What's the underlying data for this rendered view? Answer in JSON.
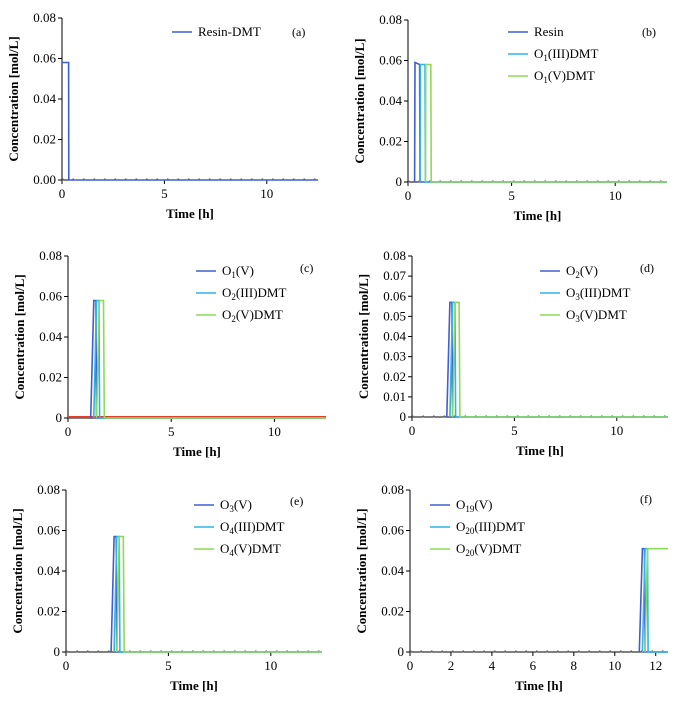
{
  "colors": {
    "blue": "#3f5fcf",
    "cyan": "#2eb4e8",
    "green": "#8ed85c",
    "red": "#e0402a",
    "axis": "#000000",
    "dotted": "#555555"
  },
  "chart_data": [
    {
      "type": "line",
      "panel": "(a)",
      "xlabel": "Time [h]",
      "ylabel": "Concentration [mol/L]",
      "xlim": [
        0,
        12.5
      ],
      "ylim": [
        0,
        0.08
      ],
      "xticks": [
        0,
        5,
        10
      ],
      "xtick_labels": [
        "0",
        "5",
        "10"
      ],
      "yticks": [
        0,
        0.02,
        0.04,
        0.06,
        0.08
      ],
      "ytick_labels": [
        "0.00",
        "0.02",
        "0.04",
        "0.06",
        "0.08"
      ],
      "series": [
        {
          "name": "Resin-DMT",
          "color": "blue",
          "x": [
            0,
            0.32,
            0.33,
            12.5
          ],
          "y": [
            0.058,
            0.058,
            0,
            0
          ]
        }
      ]
    },
    {
      "type": "line",
      "panel": "(b)",
      "xlabel": "Time [h]",
      "ylabel": "Concentration [mol/L]",
      "xlim": [
        0,
        12.5
      ],
      "ylim": [
        0,
        0.08
      ],
      "xticks": [
        0,
        5,
        10
      ],
      "xtick_labels": [
        "0",
        "5",
        "10"
      ],
      "yticks": [
        0,
        0.02,
        0.04,
        0.06,
        0.08
      ],
      "ytick_labels": [
        "0",
        "0.02",
        "0.04",
        "0.06",
        "0.08"
      ],
      "series": [
        {
          "name": "Resin",
          "sub": "",
          "suffix": "",
          "color": "blue",
          "x": [
            0.32,
            0.34,
            0.56,
            0.58,
            12.5
          ],
          "y": [
            0,
            0.059,
            0.058,
            0,
            0
          ]
        },
        {
          "name": "O",
          "sub": "1",
          "suffix": "(III)DMT",
          "color": "cyan",
          "x": [
            0.58,
            0.6,
            0.82,
            0.84,
            12.5
          ],
          "y": [
            0,
            0.058,
            0.058,
            0,
            0
          ]
        },
        {
          "name": "O",
          "sub": "1",
          "suffix": "(V)DMT",
          "color": "green",
          "x": [
            0.84,
            0.86,
            1.1,
            1.12,
            12.5
          ],
          "y": [
            0,
            0.058,
            0.058,
            0,
            0
          ]
        }
      ]
    },
    {
      "type": "line",
      "panel": "(c)",
      "xlabel": "Time [h]",
      "ylabel": "Concentration [mol/L]",
      "xlim": [
        0,
        12.5
      ],
      "ylim": [
        0,
        0.08
      ],
      "xticks": [
        0,
        5,
        10
      ],
      "xtick_labels": [
        "0",
        "5",
        "10"
      ],
      "yticks": [
        0,
        0.02,
        0.04,
        0.06,
        0.08
      ],
      "ytick_labels": [
        "0",
        "0.02",
        "0.04",
        "0.06",
        "0.08"
      ],
      "series": [
        {
          "name": "O",
          "sub": "1",
          "suffix": "(V)",
          "color": "blue",
          "x": [
            1.1,
            1.25,
            1.35,
            1.38,
            12.5
          ],
          "y": [
            0,
            0.058,
            0.058,
            0,
            0
          ]
        },
        {
          "name": "O",
          "sub": "2",
          "suffix": "(III)DMT",
          "color": "cyan",
          "x": [
            1.25,
            1.38,
            1.5,
            1.53,
            12.5
          ],
          "y": [
            0,
            0.058,
            0.058,
            0,
            0
          ]
        },
        {
          "name": "O",
          "sub": "2",
          "suffix": "(V)DMT",
          "color": "green",
          "x": [
            1.38,
            1.52,
            1.72,
            1.76,
            12.5
          ],
          "y": [
            0,
            0.058,
            0.058,
            0,
            0
          ]
        }
      ]
    },
    {
      "type": "line",
      "panel": "(d)",
      "xlabel": "Time [h]",
      "ylabel": "Concentration [mol/L]",
      "xlim": [
        0,
        12.5
      ],
      "ylim": [
        0,
        0.08
      ],
      "xticks": [
        0,
        5,
        10
      ],
      "xtick_labels": [
        "0",
        "5",
        "10"
      ],
      "yticks": [
        0,
        0.01,
        0.02,
        0.03,
        0.04,
        0.05,
        0.06,
        0.07,
        0.08
      ],
      "ytick_labels": [
        "0",
        "0.01",
        "0.02",
        "0.03",
        "0.04",
        "0.05",
        "0.06",
        "0.07",
        "0.08"
      ],
      "series": [
        {
          "name": "O",
          "sub": "2",
          "suffix": "(V)",
          "color": "blue",
          "x": [
            1.7,
            1.85,
            1.95,
            1.98,
            12.5
          ],
          "y": [
            0,
            0.057,
            0.057,
            0,
            0
          ]
        },
        {
          "name": "O",
          "sub": "3",
          "suffix": "(III)DMT",
          "color": "cyan",
          "x": [
            1.85,
            1.98,
            2.1,
            2.13,
            12.5
          ],
          "y": [
            0,
            0.057,
            0.057,
            0,
            0
          ]
        },
        {
          "name": "O",
          "sub": "3",
          "suffix": "(V)DMT",
          "color": "green",
          "x": [
            1.98,
            2.1,
            2.3,
            2.34,
            12.5
          ],
          "y": [
            0,
            0.057,
            0.057,
            0,
            0
          ]
        }
      ]
    },
    {
      "type": "line",
      "panel": "(e)",
      "xlabel": "Time [h]",
      "ylabel": "Concentration [mol/L]",
      "xlim": [
        0,
        12.5
      ],
      "ylim": [
        0,
        0.08
      ],
      "xticks": [
        0,
        5,
        10
      ],
      "xtick_labels": [
        "0",
        "5",
        "10"
      ],
      "yticks": [
        0,
        0.02,
        0.04,
        0.06,
        0.08
      ],
      "ytick_labels": [
        "0",
        "0.02",
        "0.04",
        "0.06",
        "0.08"
      ],
      "series": [
        {
          "name": "O",
          "sub": "3",
          "suffix": "(V)",
          "color": "blue",
          "x": [
            2.2,
            2.35,
            2.45,
            2.48,
            12.5
          ],
          "y": [
            0,
            0.057,
            0.057,
            0,
            0
          ]
        },
        {
          "name": "O",
          "sub": "4",
          "suffix": "(III)DMT",
          "color": "cyan",
          "x": [
            2.35,
            2.48,
            2.6,
            2.63,
            12.5
          ],
          "y": [
            0,
            0.057,
            0.057,
            0,
            0
          ]
        },
        {
          "name": "O",
          "sub": "4",
          "suffix": "(V)DMT",
          "color": "green",
          "x": [
            2.48,
            2.6,
            2.8,
            2.84,
            12.5
          ],
          "y": [
            0,
            0.057,
            0.057,
            0,
            0
          ]
        }
      ]
    },
    {
      "type": "line",
      "panel": "(f)",
      "xlabel": "Time [h]",
      "ylabel": "Concentration [mol/L]",
      "xlim": [
        0,
        12.6
      ],
      "ylim": [
        0,
        0.08
      ],
      "xticks": [
        0,
        2,
        4,
        6,
        8,
        10,
        12
      ],
      "xtick_labels": [
        "0",
        "2",
        "4",
        "6",
        "8",
        "10",
        "12"
      ],
      "yticks": [
        0,
        0.02,
        0.04,
        0.06,
        0.08
      ],
      "ytick_labels": [
        "0",
        "0.02",
        "0.04",
        "0.06",
        "0.08"
      ],
      "series": [
        {
          "name": "O",
          "sub": "19",
          "suffix": "(V)",
          "color": "blue",
          "x": [
            11.2,
            11.35,
            11.45,
            11.48,
            12.6
          ],
          "y": [
            0,
            0.051,
            0.051,
            0,
            0
          ]
        },
        {
          "name": "O",
          "sub": "20",
          "suffix": "(III)DMT",
          "color": "cyan",
          "x": [
            11.35,
            11.48,
            11.6,
            11.63,
            12.6
          ],
          "y": [
            0,
            0.051,
            0.051,
            0,
            0
          ]
        },
        {
          "name": "O",
          "sub": "20",
          "suffix": "(V)DMT",
          "color": "green",
          "x": [
            11.48,
            11.6,
            12.6
          ],
          "y": [
            0,
            0.051,
            0.051
          ]
        }
      ]
    }
  ]
}
